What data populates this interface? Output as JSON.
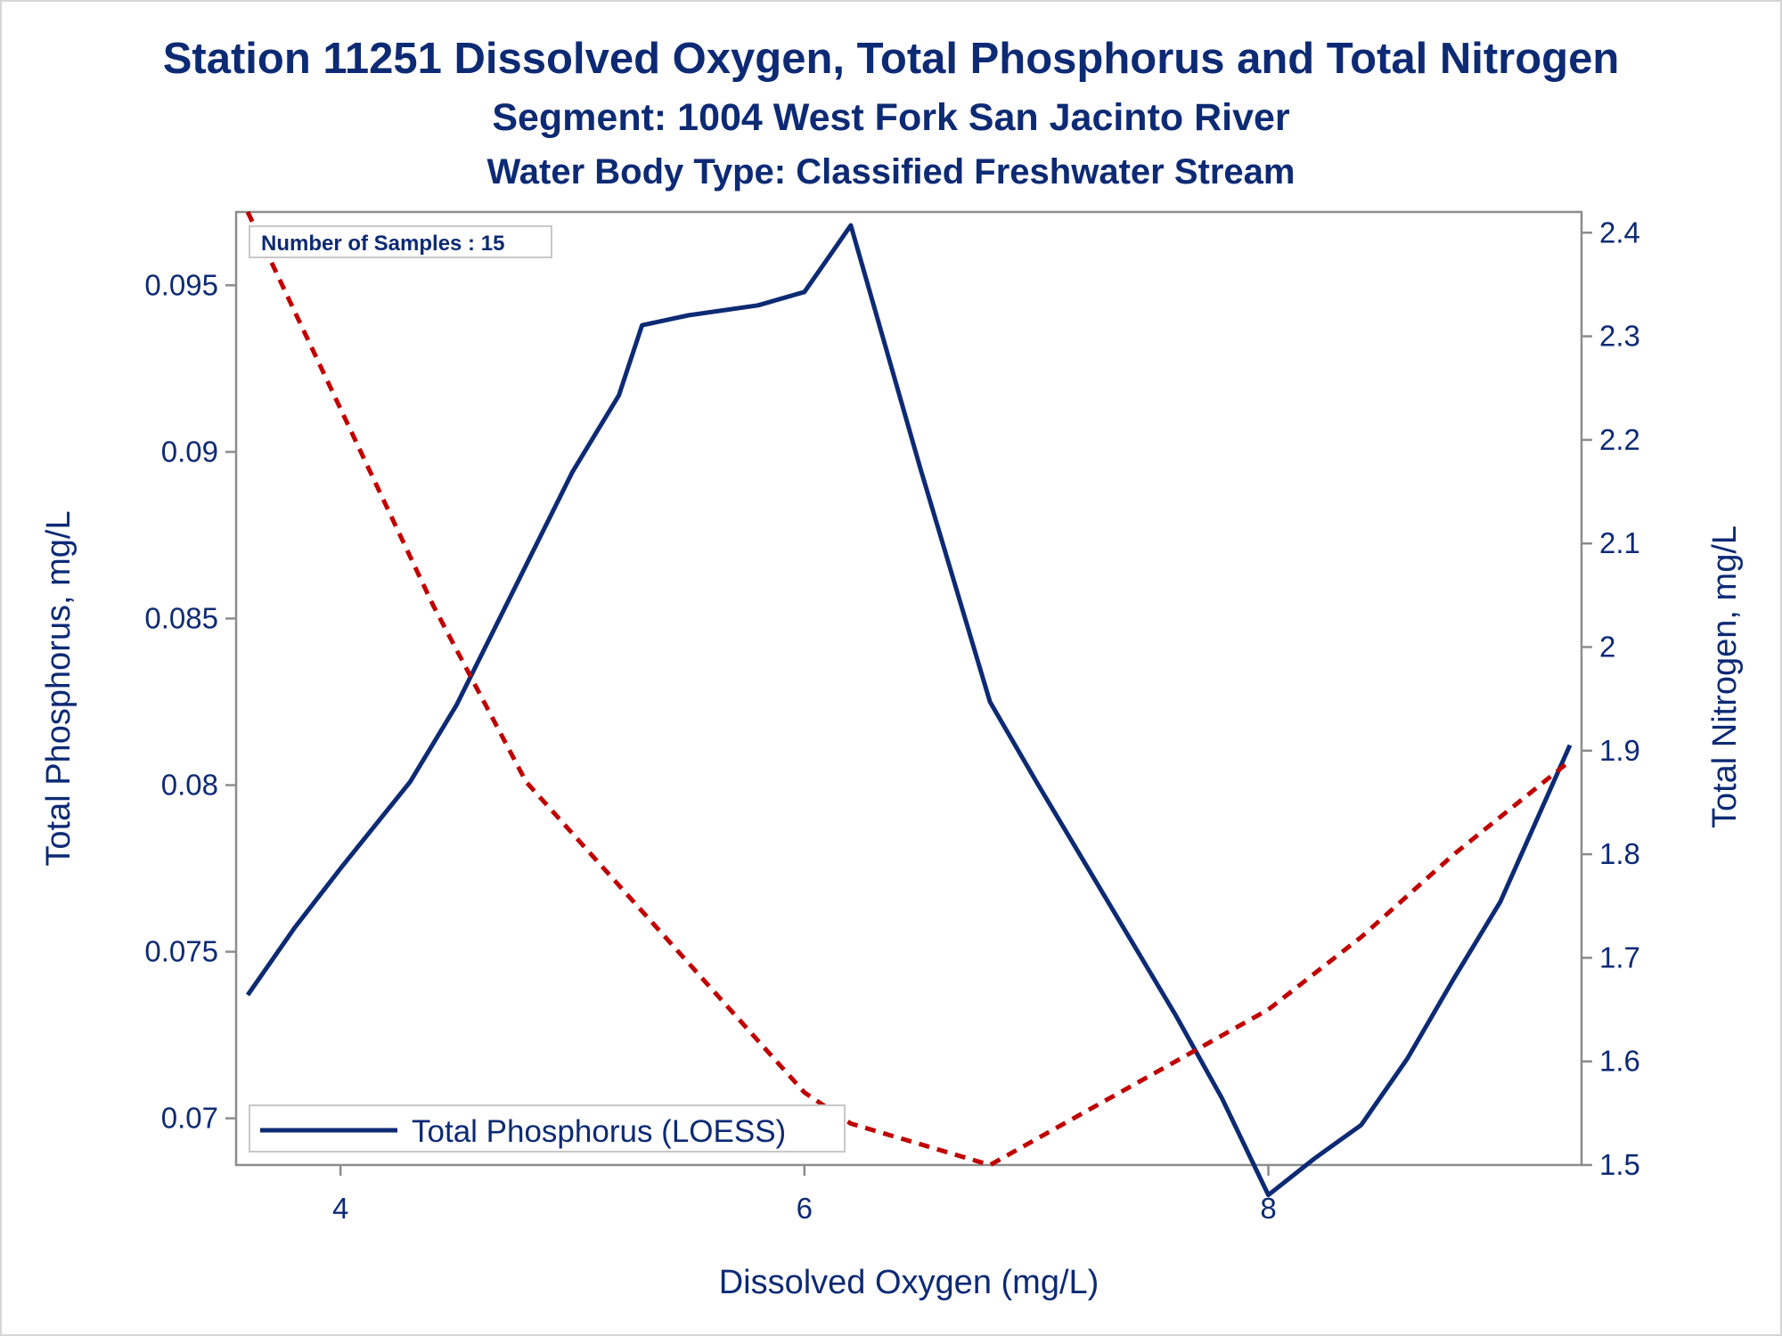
{
  "chart_data": {
    "type": "line",
    "title": "Station 11251  Dissolved Oxygen, Total Phosphorus and Total Nitrogen",
    "subtitle1": "Segment: 1004  West Fork San Jacinto River",
    "subtitle2": "Water Body Type: Classified Freshwater Stream",
    "xlabel": "Dissolved Oxygen (mg/L)",
    "ylabel_left": "Total Phosphorus, mg/L",
    "ylabel_right": "Total Nitrogen, mg/L",
    "xlim": [
      3.55,
      9.35
    ],
    "ylim_left": [
      0.0686,
      0.0972
    ],
    "ylim_right": [
      1.5,
      2.42
    ],
    "x_ticks": [
      "4",
      "6",
      "8"
    ],
    "x_tick_values": [
      4,
      6,
      8
    ],
    "y_left_ticks": [
      "0.095",
      "0.09",
      "0.085",
      "0.08",
      "0.075",
      "0.07"
    ],
    "y_left_tick_values": [
      0.095,
      0.09,
      0.085,
      0.08,
      0.075,
      0.07
    ],
    "y_right_ticks": [
      "2.4",
      "2.3",
      "2.2",
      "2.1",
      "2",
      "1.9",
      "1.8",
      "1.7",
      "1.6",
      "1.5"
    ],
    "y_right_tick_values": [
      2.4,
      2.3,
      2.2,
      2.1,
      2.0,
      1.9,
      1.8,
      1.7,
      1.6,
      1.5
    ],
    "sample_note": "Number of Samples : 15",
    "legend_label": "Total Phosphorus (LOESS)",
    "legend_position": "bottom-left",
    "grid": false,
    "colors": {
      "phosphorus": "#0d2a74",
      "nitrogen": "#c00000",
      "text": "#0d2a74",
      "axis": "#8c8c8c"
    },
    "series": [
      {
        "name": "Total Phosphorus (LOESS)",
        "axis": "left",
        "style": "solid",
        "x": [
          3.6,
          3.8,
          4.0,
          4.3,
          4.5,
          4.8,
          5.0,
          5.2,
          5.3,
          5.5,
          5.8,
          6.0,
          6.1,
          6.2,
          6.5,
          6.8,
          7.0,
          7.3,
          7.6,
          7.8,
          8.0,
          8.2,
          8.4,
          8.6,
          8.8,
          9.0,
          9.3
        ],
        "values": [
          0.0737,
          0.0757,
          0.0775,
          0.0801,
          0.0824,
          0.0866,
          0.0894,
          0.0917,
          0.0938,
          0.0941,
          0.0944,
          0.0948,
          0.0958,
          0.0968,
          0.0895,
          0.0825,
          0.0801,
          0.0766,
          0.0731,
          0.0706,
          0.0677,
          0.0688,
          0.0698,
          0.0718,
          0.0742,
          0.0765,
          0.0812
        ]
      },
      {
        "name": "Total Nitrogen",
        "axis": "right",
        "style": "dashed",
        "x": [
          3.6,
          4.0,
          4.4,
          4.8,
          5.2,
          5.6,
          6.0,
          6.2,
          6.5,
          6.8,
          7.2,
          7.6,
          8.0,
          8.4,
          8.8,
          9.3
        ],
        "values": [
          2.42,
          2.23,
          2.04,
          1.87,
          1.77,
          1.67,
          1.57,
          1.54,
          1.52,
          1.5,
          1.55,
          1.6,
          1.65,
          1.72,
          1.8,
          1.89
        ]
      }
    ]
  }
}
